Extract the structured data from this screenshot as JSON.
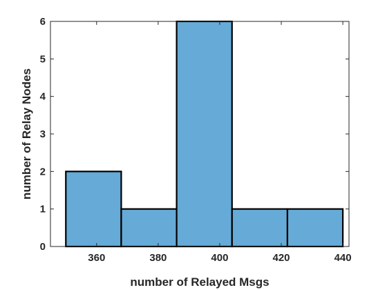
{
  "chart_data": {
    "type": "bar",
    "subtype": "histogram",
    "bin_edges": [
      350,
      368,
      386,
      404,
      422,
      440
    ],
    "values": [
      2,
      1,
      6,
      1,
      1
    ],
    "xlabel": "number of Relayed Msgs",
    "ylabel": "number of Relay Nodes",
    "xlim": [
      345,
      442
    ],
    "ylim": [
      0,
      6
    ],
    "xticks": [
      "360",
      "380",
      "400",
      "420",
      "440"
    ],
    "yticks": [
      "0",
      "1",
      "2",
      "3",
      "4",
      "5",
      "6"
    ],
    "grid": false,
    "legend": "none",
    "colors": {
      "bar_fill": "#66AAD7",
      "bar_edge": "#000000",
      "axis": "#262626"
    }
  }
}
